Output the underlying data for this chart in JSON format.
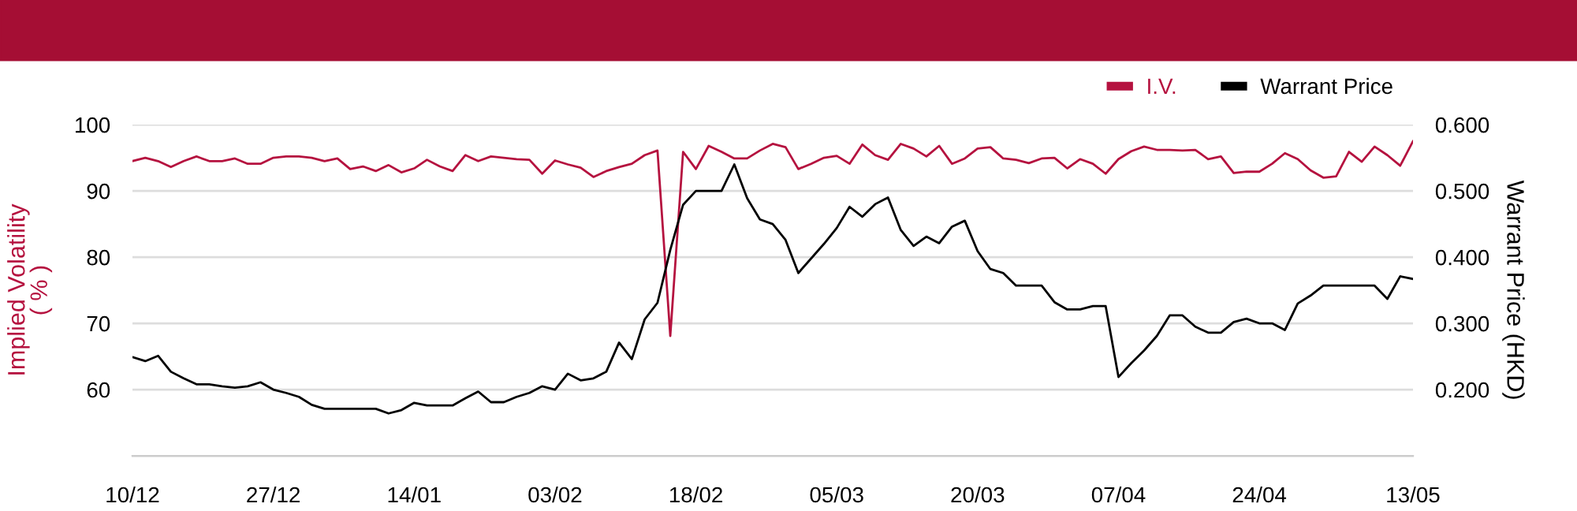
{
  "chart_data": {
    "type": "line",
    "categories": [
      "10/12",
      null,
      null,
      null,
      null,
      null,
      null,
      null,
      null,
      null,
      null,
      "27/12",
      null,
      null,
      null,
      null,
      null,
      null,
      null,
      null,
      null,
      null,
      "14/01",
      null,
      null,
      null,
      null,
      null,
      null,
      null,
      null,
      null,
      null,
      "03/02",
      null,
      null,
      null,
      null,
      null,
      null,
      null,
      null,
      null,
      null,
      "18/02",
      null,
      null,
      null,
      null,
      null,
      null,
      null,
      null,
      null,
      null,
      "05/03",
      null,
      null,
      null,
      null,
      null,
      null,
      null,
      null,
      null,
      null,
      "20/03",
      null,
      null,
      null,
      null,
      null,
      null,
      null,
      null,
      null,
      null,
      "07/04",
      null,
      null,
      null,
      null,
      null,
      null,
      null,
      null,
      null,
      null,
      "24/04",
      null,
      null,
      null,
      null,
      null,
      null,
      null,
      null,
      null,
      null,
      null,
      "13/05"
    ],
    "series": [
      {
        "name": "I.V.",
        "color": "#b5123f",
        "values": [
          94.5,
          95.0,
          94.5,
          93.6,
          94.5,
          95.2,
          94.5,
          94.5,
          94.9,
          94.1,
          94.1,
          95.0,
          95.2,
          95.2,
          95.0,
          94.5,
          94.9,
          93.3,
          93.7,
          93.0,
          93.9,
          92.8,
          93.4,
          94.7,
          93.7,
          93.0,
          95.4,
          94.5,
          95.2,
          95.0,
          94.8,
          94.7,
          92.6,
          94.6,
          94.0,
          93.5,
          92.1,
          93.0,
          93.6,
          94.1,
          95.4,
          96.1,
          68.1,
          95.9,
          93.3,
          96.8,
          95.9,
          94.9,
          94.9,
          96.1,
          97.1,
          96.6,
          93.3,
          94.1,
          95.0,
          95.3,
          94.1,
          97.0,
          95.4,
          94.7,
          97.1,
          96.4,
          95.2,
          96.8,
          94.1,
          94.9,
          96.4,
          96.6,
          94.9,
          94.7,
          94.2,
          94.9,
          95.0,
          93.4,
          94.8,
          94.1,
          92.6,
          94.8,
          96.0,
          96.7,
          96.2,
          96.2,
          96.1,
          96.2,
          94.8,
          95.2,
          92.7,
          92.9,
          92.9,
          94.1,
          95.7,
          94.8,
          93.1,
          92.0,
          92.2,
          95.9,
          94.4,
          96.7,
          95.4,
          93.8,
          97.5
        ]
      },
      {
        "name": "Warrant Price",
        "color": "#000000",
        "axis": "y2",
        "values": [
          0.249,
          0.243,
          0.251,
          0.227,
          0.217,
          0.208,
          0.208,
          0.205,
          0.203,
          0.205,
          0.211,
          0.2,
          0.195,
          0.189,
          0.177,
          0.171,
          0.171,
          0.171,
          0.171,
          0.171,
          0.164,
          0.169,
          0.18,
          0.176,
          0.176,
          0.176,
          0.187,
          0.197,
          0.181,
          0.181,
          0.189,
          0.195,
          0.205,
          0.2,
          0.224,
          0.214,
          0.217,
          0.227,
          0.271,
          0.246,
          0.306,
          0.331,
          0.411,
          0.479,
          0.5,
          0.5,
          0.5,
          0.54,
          0.489,
          0.457,
          0.45,
          0.426,
          0.376,
          0.398,
          0.42,
          0.444,
          0.476,
          0.461,
          0.48,
          0.49,
          0.441,
          0.417,
          0.431,
          0.421,
          0.446,
          0.455,
          0.409,
          0.382,
          0.376,
          0.357,
          0.357,
          0.357,
          0.332,
          0.321,
          0.321,
          0.326,
          0.326,
          0.219,
          0.24,
          0.259,
          0.281,
          0.312,
          0.312,
          0.295,
          0.286,
          0.286,
          0.302,
          0.307,
          0.3,
          0.3,
          0.29,
          0.33,
          0.342,
          0.357,
          0.357,
          0.357,
          0.357,
          0.357,
          0.337,
          0.371,
          0.367
        ]
      }
    ],
    "ylabel": "Implied Volatility\n( % )",
    "y2label": "Warrant Price (HKD)",
    "ylim": [
      50,
      100
    ],
    "yticks": [
      60,
      70,
      80,
      90,
      100
    ],
    "y2lim": [
      0.1,
      0.6
    ],
    "y2ticks": [
      {
        "value": 0.2,
        "label": "0.200"
      },
      {
        "value": 0.3,
        "label": "0.300"
      },
      {
        "value": 0.4,
        "label": "0.400"
      },
      {
        "value": 0.5,
        "label": "0.500"
      },
      {
        "value": 0.6,
        "label": "0.600"
      }
    ],
    "grid": "y",
    "legend": "top right",
    "marker": "none",
    "line_style": "solid"
  }
}
